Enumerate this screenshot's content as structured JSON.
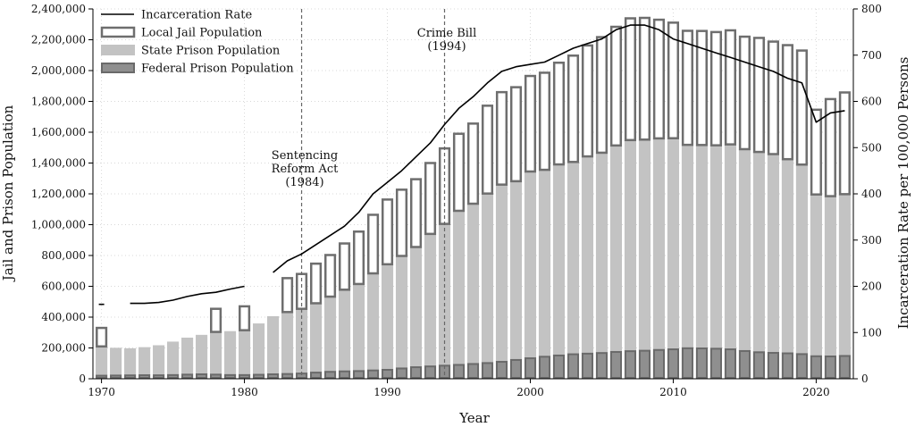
{
  "chart_data": {
    "type": "bar",
    "subtype": "stacked bar with line on secondary axis",
    "title": "",
    "xlabel": "Year",
    "ylabel_left": "Jail and Prison Population",
    "ylabel_right": "Incarceration Rate per 100,000 Persons",
    "xlim": [
      1969.4,
      1972.6
    ],
    "xlim_full": [
      1969.4,
      2022.6
    ],
    "x_ticks": [
      "1970",
      "1980",
      "1990",
      "2000",
      "2010",
      "2020"
    ],
    "ylim_left": [
      0,
      2400000
    ],
    "y_left_ticks": [
      "0",
      "200,000",
      "400,000",
      "600,000",
      "800,000",
      "1,000,000",
      "1,200,000",
      "1,400,000",
      "1,600,000",
      "1,800,000",
      "2,000,000",
      "2,200,000",
      "2,400,000"
    ],
    "ylim_right": [
      0,
      800
    ],
    "y_right_ticks": [
      "0",
      "100",
      "200",
      "300",
      "400",
      "500",
      "600",
      "700",
      "800"
    ],
    "grid": true,
    "legend_position": "top-left",
    "legend": [
      {
        "label": "Incarceration Rate",
        "kind": "line"
      },
      {
        "label": "Local Jail Population",
        "kind": "hollow"
      },
      {
        "label": "State Prison Population",
        "kind": "state"
      },
      {
        "label": "Federal Prison Population",
        "kind": "federal"
      }
    ],
    "colors": {
      "jail_edge": "#6e6e6e",
      "state_fill": "#c3c3c3",
      "federal_fill": "#8f8f8f",
      "federal_edge": "#6a6a6a",
      "line": "#000000",
      "reference": "#666666"
    },
    "years": [
      1970,
      1971,
      1972,
      1973,
      1974,
      1975,
      1976,
      1977,
      1978,
      1979,
      1980,
      1981,
      1982,
      1983,
      1984,
      1985,
      1986,
      1987,
      1988,
      1989,
      1990,
      1991,
      1992,
      1993,
      1994,
      1995,
      1996,
      1997,
      1998,
      1999,
      2000,
      2001,
      2002,
      2003,
      2004,
      2005,
      2006,
      2007,
      2008,
      2009,
      2010,
      2011,
      2012,
      2013,
      2014,
      2015,
      2016,
      2017,
      2018,
      2019,
      2020,
      2021,
      2022
    ],
    "federal": [
      20000,
      21000,
      22000,
      23000,
      22500,
      24000,
      27000,
      29000,
      27000,
      24000,
      24000,
      26000,
      29000,
      31000,
      34000,
      40000,
      45000,
      48000,
      50000,
      54000,
      58000,
      67000,
      75000,
      80000,
      85000,
      90000,
      96000,
      102000,
      110000,
      122000,
      133000,
      143000,
      151000,
      159000,
      163000,
      167000,
      174000,
      179000,
      182000,
      187000,
      191000,
      198000,
      197000,
      195000,
      191000,
      180000,
      172000,
      168000,
      165000,
      160000,
      146000,
      145000,
      148000
    ],
    "state": [
      190000,
      180000,
      176000,
      182000,
      195000,
      217000,
      240000,
      256000,
      277000,
      285000,
      291000,
      333000,
      377000,
      402000,
      420000,
      450000,
      488000,
      530000,
      565000,
      630000,
      685000,
      730000,
      780000,
      860000,
      920000,
      1000000,
      1040000,
      1100000,
      1150000,
      1160000,
      1212000,
      1213000,
      1240000,
      1248000,
      1280000,
      1300000,
      1340000,
      1370000,
      1370000,
      1373000,
      1370000,
      1320000,
      1320000,
      1320000,
      1330000,
      1310000,
      1300000,
      1290000,
      1260000,
      1230000,
      1050000,
      1040000,
      1050000
    ],
    "jail": [
      120000,
      null,
      null,
      null,
      null,
      null,
      null,
      null,
      150000,
      null,
      155000,
      null,
      null,
      220000,
      226000,
      257000,
      270000,
      300000,
      340000,
      380000,
      420000,
      430000,
      440000,
      460000,
      490000,
      500000,
      520000,
      570000,
      600000,
      610000,
      620000,
      630000,
      660000,
      690000,
      720000,
      750000,
      770000,
      790000,
      790000,
      770000,
      750000,
      740000,
      740000,
      735000,
      740000,
      730000,
      740000,
      730000,
      740000,
      740000,
      550000,
      630000,
      660000
    ],
    "rate": [
      161,
      null,
      163,
      163,
      165,
      170,
      178,
      184,
      187,
      194,
      200,
      null,
      230,
      255,
      270,
      290,
      310,
      330,
      360,
      400,
      425,
      450,
      480,
      510,
      550,
      585,
      610,
      640,
      665,
      675,
      680,
      685,
      700,
      715,
      725,
      735,
      755,
      765,
      765,
      755,
      735,
      725,
      715,
      705,
      695,
      685,
      675,
      665,
      650,
      640,
      555,
      575,
      580
    ],
    "annotations": [
      {
        "label": "Sentencing Reform Act (1984)",
        "lines": [
          "Sentencing",
          "Reform Act",
          "(1984)"
        ],
        "year": 1984
      },
      {
        "label": "Crime Bill (1994)",
        "lines": [
          "Crime Bill",
          "(1994)"
        ],
        "year": 1994
      }
    ]
  }
}
